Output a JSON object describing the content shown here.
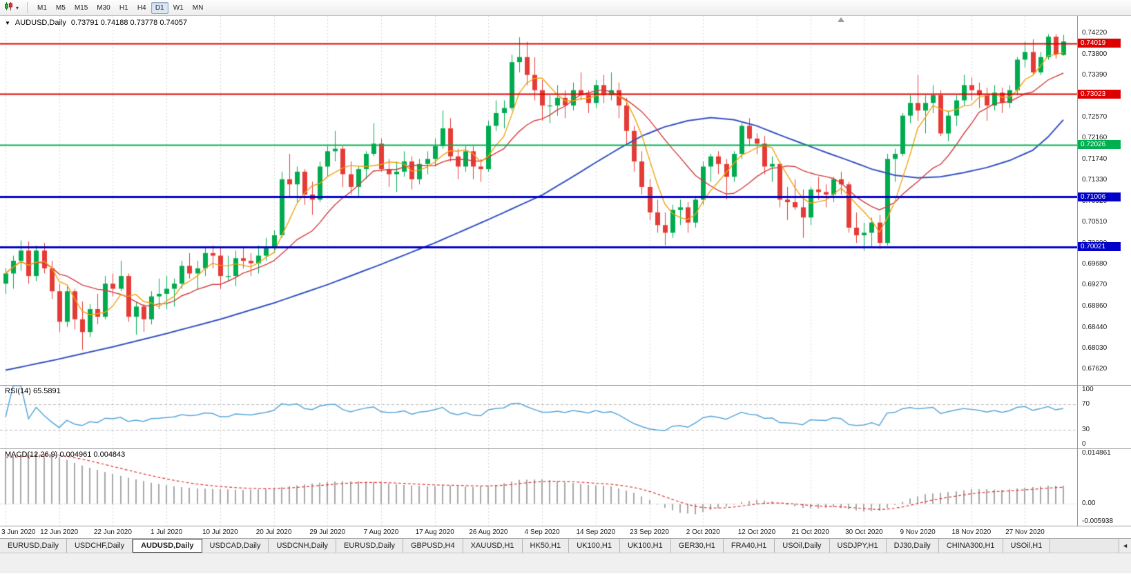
{
  "toolbar": {
    "timeframes": [
      "M1",
      "M5",
      "M15",
      "M30",
      "H1",
      "H4",
      "D1",
      "W1",
      "MN"
    ],
    "active_timeframe": "D1"
  },
  "chart": {
    "collapse_icon": "▼",
    "title_symbol": "AUDUSD,Daily",
    "title_ohlc": "0.73791 0.74188 0.73778 0.74057"
  },
  "tabs": {
    "items": [
      "EURUSD,Daily",
      "USDCHF,Daily",
      "AUDUSD,Daily",
      "USDCAD,Daily",
      "USDCNH,Daily",
      "EURUSD,Daily",
      "GBPUSD,H4",
      "XAUUSD,H1",
      "HK50,H1",
      "UK100,H1",
      "UK100,H1",
      "GER30,H1",
      "FRA40,H1",
      "USOil,Daily",
      "USDJPY,H1",
      "DJ30,Daily",
      "CHINA300,H1",
      "USOil,H1"
    ],
    "active_index": 2,
    "scroll_icon": "◄"
  },
  "chart_data": {
    "type": "candlestick",
    "symbol": "AUDUSD",
    "period": "Daily",
    "current_ohlc": {
      "open": "0.73791",
      "high": "0.74188",
      "low": "0.73778",
      "close": "0.74057"
    },
    "y_range": [
      0.6731,
      0.7456
    ],
    "y_ticks": [
      "0.74220",
      "0.73800",
      "0.73390",
      "0.72980",
      "0.72570",
      "0.72160",
      "0.71740",
      "0.71330",
      "0.70920",
      "0.70510",
      "0.70090",
      "0.69680",
      "0.69270",
      "0.68860",
      "0.68440",
      "0.68030",
      "0.67620"
    ],
    "x_labels": [
      "3 Jun 2020",
      "12 Jun 2020",
      "22 Jun 2020",
      "1 Jul 2020",
      "10 Jul 2020",
      "20 Jul 2020",
      "29 Jul 2020",
      "7 Aug 2020",
      "17 Aug 2020",
      "26 Aug 2020",
      "4 Sep 2020",
      "14 Sep 2020",
      "23 Sep 2020",
      "2 Oct 2020",
      "12 Oct 2020",
      "21 Oct 2020",
      "30 Oct 2020",
      "9 Nov 2020",
      "18 Nov 2020",
      "27 Nov 2020"
    ],
    "x_label_every": 7,
    "bull_color": "#00AB4F",
    "bear_color": "#E53B36",
    "grid_color": "#d6d6d6",
    "candles": [
      [
        0.693,
        0.696,
        0.691,
        0.695
      ],
      [
        0.695,
        0.6985,
        0.692,
        0.6975
      ],
      [
        0.6975,
        0.7015,
        0.6955,
        0.6995
      ],
      [
        0.6995,
        0.7013,
        0.693,
        0.6945
      ],
      [
        0.6945,
        0.7005,
        0.6935,
        0.6995
      ],
      [
        0.6995,
        0.701,
        0.695,
        0.696
      ],
      [
        0.696,
        0.6975,
        0.69,
        0.6915
      ],
      [
        0.6915,
        0.693,
        0.6835,
        0.6855
      ],
      [
        0.6855,
        0.6925,
        0.6845,
        0.6915
      ],
      [
        0.6915,
        0.692,
        0.684,
        0.686
      ],
      [
        0.686,
        0.6895,
        0.68,
        0.6835
      ],
      [
        0.6835,
        0.689,
        0.6825,
        0.688
      ],
      [
        0.688,
        0.691,
        0.685,
        0.6865
      ],
      [
        0.6865,
        0.6945,
        0.686,
        0.693
      ],
      [
        0.693,
        0.695,
        0.6905,
        0.692
      ],
      [
        0.692,
        0.6975,
        0.6915,
        0.6945
      ],
      [
        0.6945,
        0.695,
        0.6855,
        0.6865
      ],
      [
        0.6865,
        0.6895,
        0.683,
        0.6885
      ],
      [
        0.6885,
        0.689,
        0.6835,
        0.686
      ],
      [
        0.686,
        0.6915,
        0.685,
        0.6905
      ],
      [
        0.6905,
        0.694,
        0.688,
        0.691
      ],
      [
        0.691,
        0.6945,
        0.688,
        0.692
      ],
      [
        0.692,
        0.694,
        0.6885,
        0.693
      ],
      [
        0.693,
        0.6975,
        0.692,
        0.6965
      ],
      [
        0.6965,
        0.699,
        0.694,
        0.695
      ],
      [
        0.695,
        0.6975,
        0.692,
        0.696
      ],
      [
        0.696,
        0.7,
        0.6945,
        0.699
      ],
      [
        0.699,
        0.7005,
        0.696,
        0.6985
      ],
      [
        0.6985,
        0.7,
        0.692,
        0.6945
      ],
      [
        0.6945,
        0.6985,
        0.6935,
        0.6945
      ],
      [
        0.6945,
        0.6995,
        0.6925,
        0.698
      ],
      [
        0.698,
        0.7,
        0.696,
        0.6975
      ],
      [
        0.6975,
        0.699,
        0.6945,
        0.697
      ],
      [
        0.697,
        0.7005,
        0.695,
        0.6985
      ],
      [
        0.6985,
        0.702,
        0.6975,
        0.7
      ],
      [
        0.7,
        0.7035,
        0.699,
        0.7025
      ],
      [
        0.7025,
        0.715,
        0.702,
        0.7135
      ],
      [
        0.7135,
        0.7185,
        0.71,
        0.7125
      ],
      [
        0.7125,
        0.716,
        0.709,
        0.715
      ],
      [
        0.715,
        0.7155,
        0.7085,
        0.7105
      ],
      [
        0.7105,
        0.713,
        0.7065,
        0.7095
      ],
      [
        0.7095,
        0.717,
        0.709,
        0.716
      ],
      [
        0.716,
        0.72,
        0.714,
        0.719
      ],
      [
        0.719,
        0.723,
        0.717,
        0.7195
      ],
      [
        0.7195,
        0.72,
        0.712,
        0.7145
      ],
      [
        0.7145,
        0.717,
        0.7105,
        0.712
      ],
      [
        0.712,
        0.716,
        0.71,
        0.7155
      ],
      [
        0.7155,
        0.719,
        0.7135,
        0.7185
      ],
      [
        0.7185,
        0.7245,
        0.718,
        0.7205
      ],
      [
        0.7205,
        0.7215,
        0.715,
        0.7155
      ],
      [
        0.7155,
        0.7175,
        0.712,
        0.7145
      ],
      [
        0.7145,
        0.717,
        0.711,
        0.715
      ],
      [
        0.715,
        0.719,
        0.714,
        0.717
      ],
      [
        0.717,
        0.718,
        0.7115,
        0.7135
      ],
      [
        0.7135,
        0.7175,
        0.7125,
        0.7165
      ],
      [
        0.7165,
        0.719,
        0.7145,
        0.7175
      ],
      [
        0.7175,
        0.7215,
        0.716,
        0.72
      ],
      [
        0.72,
        0.727,
        0.7195,
        0.7235
      ],
      [
        0.7235,
        0.7255,
        0.717,
        0.718
      ],
      [
        0.718,
        0.7195,
        0.7135,
        0.716
      ],
      [
        0.716,
        0.72,
        0.715,
        0.719
      ],
      [
        0.719,
        0.72,
        0.7135,
        0.716
      ],
      [
        0.716,
        0.7175,
        0.713,
        0.7155
      ],
      [
        0.7155,
        0.725,
        0.715,
        0.724
      ],
      [
        0.724,
        0.729,
        0.723,
        0.7265
      ],
      [
        0.7265,
        0.729,
        0.7235,
        0.7275
      ],
      [
        0.7275,
        0.738,
        0.727,
        0.7365
      ],
      [
        0.7365,
        0.7414,
        0.7345,
        0.7375
      ],
      [
        0.7375,
        0.7405,
        0.732,
        0.734
      ],
      [
        0.734,
        0.7375,
        0.729,
        0.731
      ],
      [
        0.731,
        0.733,
        0.725,
        0.728
      ],
      [
        0.728,
        0.73,
        0.7245,
        0.728
      ],
      [
        0.728,
        0.732,
        0.726,
        0.7295
      ],
      [
        0.7295,
        0.731,
        0.7255,
        0.728
      ],
      [
        0.728,
        0.7325,
        0.727,
        0.731
      ],
      [
        0.731,
        0.7345,
        0.729,
        0.73
      ],
      [
        0.73,
        0.731,
        0.7265,
        0.7285
      ],
      [
        0.7285,
        0.733,
        0.7275,
        0.732
      ],
      [
        0.732,
        0.734,
        0.7285,
        0.73
      ],
      [
        0.73,
        0.7345,
        0.729,
        0.731
      ],
      [
        0.731,
        0.7325,
        0.7255,
        0.728
      ],
      [
        0.728,
        0.7295,
        0.7205,
        0.723
      ],
      [
        0.723,
        0.724,
        0.715,
        0.717
      ],
      [
        0.717,
        0.719,
        0.7105,
        0.712
      ],
      [
        0.712,
        0.7135,
        0.7055,
        0.707
      ],
      [
        0.707,
        0.7095,
        0.703,
        0.7045
      ],
      [
        0.7045,
        0.707,
        0.7005,
        0.703
      ],
      [
        0.703,
        0.7085,
        0.702,
        0.7075
      ],
      [
        0.7075,
        0.7095,
        0.7045,
        0.708
      ],
      [
        0.708,
        0.709,
        0.703,
        0.705
      ],
      [
        0.705,
        0.71,
        0.704,
        0.7095
      ],
      [
        0.7095,
        0.717,
        0.7085,
        0.716
      ],
      [
        0.716,
        0.7185,
        0.713,
        0.718
      ],
      [
        0.718,
        0.719,
        0.7145,
        0.7165
      ],
      [
        0.7165,
        0.7175,
        0.7095,
        0.714
      ],
      [
        0.714,
        0.719,
        0.713,
        0.7185
      ],
      [
        0.7185,
        0.7245,
        0.7175,
        0.724
      ],
      [
        0.724,
        0.7255,
        0.72,
        0.7215
      ],
      [
        0.7215,
        0.7225,
        0.7185,
        0.7205
      ],
      [
        0.7205,
        0.722,
        0.7145,
        0.716
      ],
      [
        0.716,
        0.718,
        0.713,
        0.7165
      ],
      [
        0.7165,
        0.717,
        0.708,
        0.7095
      ],
      [
        0.7095,
        0.712,
        0.7055,
        0.709
      ],
      [
        0.709,
        0.7135,
        0.7075,
        0.708
      ],
      [
        0.708,
        0.7115,
        0.702,
        0.706
      ],
      [
        0.706,
        0.712,
        0.7045,
        0.7115
      ],
      [
        0.7115,
        0.714,
        0.7095,
        0.711
      ],
      [
        0.711,
        0.7125,
        0.708,
        0.7105
      ],
      [
        0.7105,
        0.714,
        0.709,
        0.7135
      ],
      [
        0.7135,
        0.715,
        0.7105,
        0.7125
      ],
      [
        0.7125,
        0.713,
        0.703,
        0.704
      ],
      [
        0.704,
        0.707,
        0.701,
        0.7025
      ],
      [
        0.7025,
        0.705,
        0.6995,
        0.703
      ],
      [
        0.703,
        0.706,
        0.7,
        0.705
      ],
      [
        0.705,
        0.7065,
        0.6998,
        0.701
      ],
      [
        0.701,
        0.7185,
        0.7005,
        0.7175
      ],
      [
        0.7175,
        0.7195,
        0.713,
        0.7185
      ],
      [
        0.7185,
        0.7265,
        0.718,
        0.726
      ],
      [
        0.726,
        0.73,
        0.7245,
        0.7285
      ],
      [
        0.7285,
        0.734,
        0.725,
        0.727
      ],
      [
        0.727,
        0.73,
        0.7225,
        0.7285
      ],
      [
        0.7285,
        0.732,
        0.7265,
        0.73
      ],
      [
        0.73,
        0.731,
        0.722,
        0.7225
      ],
      [
        0.7225,
        0.727,
        0.721,
        0.726
      ],
      [
        0.726,
        0.73,
        0.724,
        0.729
      ],
      [
        0.729,
        0.734,
        0.728,
        0.732
      ],
      [
        0.732,
        0.7335,
        0.729,
        0.731
      ],
      [
        0.731,
        0.7325,
        0.7275,
        0.73
      ],
      [
        0.73,
        0.7315,
        0.725,
        0.728
      ],
      [
        0.728,
        0.732,
        0.727,
        0.7305
      ],
      [
        0.7305,
        0.7315,
        0.7265,
        0.7285
      ],
      [
        0.7285,
        0.732,
        0.7275,
        0.731
      ],
      [
        0.731,
        0.7375,
        0.73,
        0.737
      ],
      [
        0.737,
        0.7405,
        0.7355,
        0.7385
      ],
      [
        0.7385,
        0.741,
        0.734,
        0.7345
      ],
      [
        0.7345,
        0.7385,
        0.734,
        0.7375
      ],
      [
        0.7375,
        0.742,
        0.737,
        0.7415
      ],
      [
        0.7415,
        0.742,
        0.7372,
        0.738
      ],
      [
        0.73791,
        0.74188,
        0.73778,
        0.74057
      ]
    ],
    "moving_averages": [
      {
        "name": "fast-ma",
        "color": "#EFA30F",
        "width": 1.4,
        "period": 5
      },
      {
        "name": "medium-ma",
        "color": "#D23B3B",
        "width": 1.4,
        "period": 13
      },
      {
        "name": "slow-ma",
        "color": "#3350C2",
        "width": 2,
        "points": [
          [
            0,
            0.676
          ],
          [
            7,
            0.6782
          ],
          [
            14,
            0.6806
          ],
          [
            21,
            0.6832
          ],
          [
            28,
            0.686
          ],
          [
            35,
            0.6892
          ],
          [
            42,
            0.6928
          ],
          [
            49,
            0.6968
          ],
          [
            56,
            0.701
          ],
          [
            63,
            0.7056
          ],
          [
            70,
            0.7104
          ],
          [
            74,
            0.714
          ],
          [
            77,
            0.7168
          ],
          [
            80,
            0.7195
          ],
          [
            83,
            0.722
          ],
          [
            86,
            0.7238
          ],
          [
            89,
            0.725
          ],
          [
            92,
            0.7256
          ],
          [
            95,
            0.7252
          ],
          [
            98,
            0.724
          ],
          [
            101,
            0.7222
          ],
          [
            104,
            0.7205
          ],
          [
            107,
            0.7188
          ],
          [
            110,
            0.7172
          ],
          [
            113,
            0.7155
          ],
          [
            116,
            0.7143
          ],
          [
            119,
            0.7138
          ],
          [
            122,
            0.714
          ],
          [
            125,
            0.7148
          ],
          [
            128,
            0.7158
          ],
          [
            131,
            0.7172
          ],
          [
            134,
            0.7192
          ],
          [
            136,
            0.7218
          ],
          [
            138,
            0.7252
          ]
        ]
      }
    ],
    "hlines": [
      {
        "label": "0.74019",
        "value": 0.74019,
        "color": "#DD0000",
        "width": 2
      },
      {
        "label": "0.73023",
        "value": 0.73023,
        "color": "#DD0000",
        "width": 2
      },
      {
        "label": "0.72026",
        "value": 0.72026,
        "color": "#00B050",
        "width": 2
      },
      {
        "label": "0.71006",
        "value": 0.71006,
        "color": "#0000C8",
        "width": 3
      },
      {
        "label": "0.70021",
        "value": 0.70021,
        "color": "#0000C8",
        "width": 3
      }
    ],
    "rsi": {
      "label": "RSI(14) 65.5891",
      "period": 14,
      "current_value": "65.5891",
      "color": "#55A5D9",
      "levels": [
        70,
        30
      ],
      "ticks": [
        {
          "label": "100",
          "value": 100
        },
        {
          "label": "70",
          "value": 70
        },
        {
          "label": "30",
          "value": 30
        },
        {
          "label": "0",
          "value": 0
        }
      ]
    },
    "macd": {
      "label": "MACD(12,26,9) 0.004961 0.004843",
      "current_values": [
        "0.004961",
        "0.004843"
      ],
      "histogram_color": "#A8A8A8",
      "signal_color": "#E03030",
      "signal_period": 9,
      "y_range": [
        -0.0062,
        0.0152
      ],
      "ticks": [
        {
          "label": "0.014861",
          "value": 0.014861
        },
        {
          "label": "0.00",
          "value": 0
        },
        {
          "label": "-0.005938",
          "value": -0.005938
        }
      ],
      "points": [
        [
          0,
          0.0128
        ],
        [
          2,
          0.0138
        ],
        [
          4,
          0.0142
        ],
        [
          6,
          0.0136
        ],
        [
          8,
          0.0122
        ],
        [
          10,
          0.0106
        ],
        [
          13,
          0.0088
        ],
        [
          16,
          0.0072
        ],
        [
          19,
          0.0058
        ],
        [
          22,
          0.0048
        ],
        [
          25,
          0.0042
        ],
        [
          28,
          0.004
        ],
        [
          31,
          0.0038
        ],
        [
          34,
          0.004
        ],
        [
          37,
          0.0048
        ],
        [
          40,
          0.0056
        ],
        [
          43,
          0.0062
        ],
        [
          46,
          0.0062
        ],
        [
          49,
          0.0058
        ],
        [
          52,
          0.0052
        ],
        [
          55,
          0.0048
        ],
        [
          58,
          0.005
        ],
        [
          61,
          0.0046
        ],
        [
          64,
          0.0052
        ],
        [
          67,
          0.0066
        ],
        [
          70,
          0.0068
        ],
        [
          73,
          0.006
        ],
        [
          76,
          0.0052
        ],
        [
          79,
          0.0048
        ],
        [
          82,
          0.003
        ],
        [
          84,
          0.001
        ],
        [
          86,
          -0.0012
        ],
        [
          88,
          -0.0026
        ],
        [
          90,
          -0.003
        ],
        [
          92,
          -0.0018
        ],
        [
          94,
          -0.0008
        ],
        [
          96,
          0.0004
        ],
        [
          98,
          0.001
        ],
        [
          100,
          0.0006
        ],
        [
          102,
          -0.0004
        ],
        [
          104,
          -0.0012
        ],
        [
          106,
          -0.0014
        ],
        [
          108,
          -0.001
        ],
        [
          110,
          -0.0016
        ],
        [
          112,
          -0.0022
        ],
        [
          114,
          -0.002
        ],
        [
          116,
          -0.0004
        ],
        [
          118,
          0.0014
        ],
        [
          120,
          0.0026
        ],
        [
          122,
          0.003
        ],
        [
          124,
          0.0034
        ],
        [
          126,
          0.004
        ],
        [
          128,
          0.004
        ],
        [
          130,
          0.0038
        ],
        [
          132,
          0.0042
        ],
        [
          134,
          0.0046
        ],
        [
          136,
          0.005
        ],
        [
          138,
          0.004961
        ]
      ]
    }
  }
}
